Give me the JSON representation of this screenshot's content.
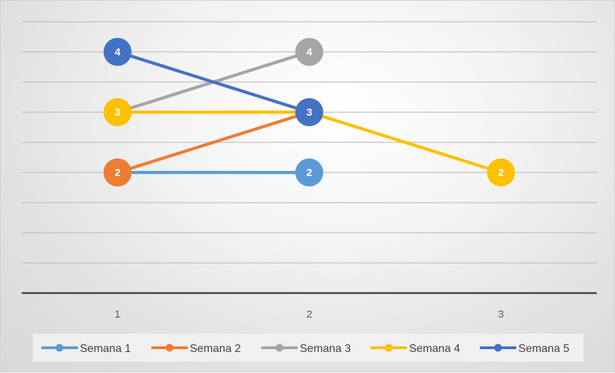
{
  "chart_data": {
    "type": "line",
    "title": "",
    "xlabel": "",
    "ylabel": "",
    "categories": [
      "1",
      "2",
      "3"
    ],
    "ylim": [
      0,
      4.5
    ],
    "grid": true,
    "legend_position": "bottom",
    "data_labels": true,
    "series": [
      {
        "name": "Semana 1",
        "color": "#5B9BD5",
        "values": [
          2,
          2,
          null
        ]
      },
      {
        "name": "Semana 2",
        "color": "#ED7D31",
        "values": [
          2,
          3,
          null
        ]
      },
      {
        "name": "Semana 3",
        "color": "#A5A5A5",
        "values": [
          3,
          4,
          null
        ]
      },
      {
        "name": "Semana 4",
        "color": "#FFC000",
        "values": [
          3,
          3,
          2
        ]
      },
      {
        "name": "Semana 5",
        "color": "#4472C4",
        "values": [
          4,
          3,
          null
        ]
      }
    ]
  }
}
